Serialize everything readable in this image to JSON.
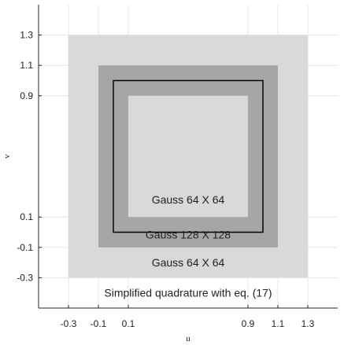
{
  "axes": {
    "xlabel": "u",
    "ylabel": "v",
    "xlim": [
      -0.5,
      1.5
    ],
    "ylim": [
      -0.5,
      1.5
    ],
    "xticks": [
      -0.3,
      -0.1,
      0.1,
      0.9,
      1.1,
      1.3
    ],
    "yticks": [
      -0.3,
      -0.1,
      0.1,
      0.9,
      1.1,
      1.3
    ],
    "xtick_labels": [
      "-0.3",
      "-0.1",
      "0.1",
      "0.9",
      "1.1",
      "1.3"
    ],
    "ytick_labels": [
      "-0.3",
      "-0.1",
      "0.1",
      "0.9",
      "1.1",
      "1.3"
    ],
    "grid": true
  },
  "regions": [
    {
      "id": "outer",
      "label": "Gauss 64 X 64",
      "range": [
        -0.3,
        1.3
      ],
      "color": "#d9d9d9",
      "label_uv": [
        0.5,
        -0.2
      ]
    },
    {
      "id": "middle",
      "label": "Gauss 128 X 128",
      "range": [
        -0.1,
        1.1
      ],
      "color": "#a6a6a6",
      "label_uv": [
        0.5,
        0.0
      ]
    },
    {
      "id": "inner",
      "label": "Gauss 64 X 64",
      "range": [
        0.1,
        0.9
      ],
      "color": "#d9d9d9",
      "label_uv": [
        0.5,
        0.2
      ]
    }
  ],
  "element_boundary": {
    "range": [
      0.0,
      1.0
    ],
    "color": "#000000"
  },
  "background_label": {
    "text": "Simplified quadrature with eq. (17)",
    "label_uv": [
      0.5,
      -0.4
    ]
  },
  "colors": {
    "axes_background": "#ffffff",
    "grid": "#e6e6e6",
    "axis": "#262626"
  }
}
